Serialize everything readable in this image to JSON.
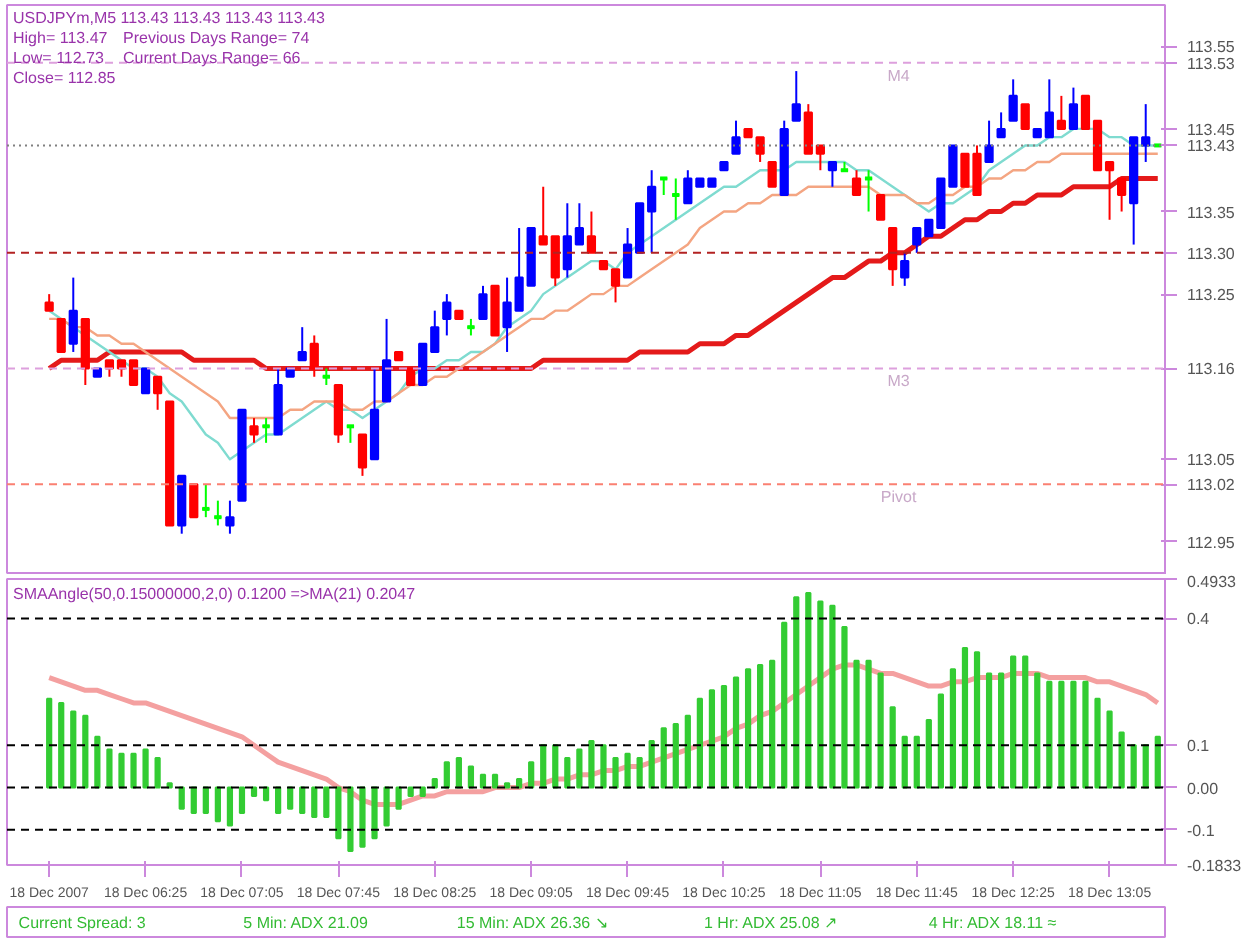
{
  "chart_data": [
    {
      "type": "candlestick",
      "tick_labels": "y",
      "grid": false,
      "categories": [
        null,
        null,
        null,
        null,
        null,
        null,
        null,
        null,
        null,
        null,
        null,
        null,
        null,
        null,
        null,
        null,
        null,
        null,
        null,
        null,
        null,
        null,
        null,
        null,
        null,
        null,
        null,
        null,
        null,
        null,
        null,
        null,
        null,
        null,
        null,
        null,
        null,
        null,
        null,
        null,
        null,
        null,
        null,
        null,
        null,
        null,
        null,
        null,
        null,
        null,
        null,
        null,
        null,
        null,
        null,
        null,
        null,
        null,
        null,
        null,
        null,
        null,
        null,
        null,
        null,
        null,
        null,
        null,
        null,
        null,
        null,
        null,
        null,
        null,
        null,
        null,
        null,
        null,
        null,
        null,
        null,
        null,
        null,
        null,
        null,
        null,
        null,
        null,
        null,
        null,
        null,
        null,
        null
      ],
      "ylim": [
        112.91,
        113.6
      ],
      "yticks": [
        113.55,
        {
          "value": 113.53,
          "label": "113.53"
        },
        113.45,
        {
          "value": 113.43,
          "label": "113.43"
        },
        113.35,
        {
          "value": 113.3,
          "label": "113.30"
        },
        113.25,
        {
          "value": 113.16,
          "label": "113.16"
        },
        113.05,
        {
          "value": 113.02,
          "label": "113.02"
        },
        112.95
      ],
      "ohlc": [
        [
          113.24,
          113.25,
          113.23,
          113.23
        ],
        [
          113.22,
          113.22,
          113.18,
          113.18
        ],
        [
          113.19,
          113.27,
          113.18,
          113.23
        ],
        [
          113.22,
          113.22,
          113.14,
          113.16
        ],
        [
          113.15,
          113.16,
          113.15,
          113.16
        ],
        [
          113.17,
          113.17,
          113.15,
          113.16
        ],
        [
          113.17,
          113.17,
          113.15,
          113.16
        ],
        [
          113.17,
          113.17,
          113.14,
          113.14
        ],
        [
          113.13,
          113.16,
          113.13,
          113.16
        ],
        [
          113.15,
          113.15,
          113.11,
          113.13
        ],
        [
          113.12,
          113.12,
          112.97,
          112.97
        ],
        [
          112.97,
          113.03,
          112.96,
          113.03
        ],
        [
          113.02,
          113.02,
          112.98,
          112.98
        ],
        [
          112.99,
          113.02,
          112.98,
          112.99
        ],
        [
          112.98,
          113.0,
          112.97,
          112.98
        ],
        [
          112.97,
          113.0,
          112.96,
          112.98
        ],
        [
          113.0,
          113.11,
          113.0,
          113.11
        ],
        [
          113.09,
          113.1,
          113.07,
          113.08
        ],
        [
          113.09,
          113.1,
          113.07,
          113.09
        ],
        [
          113.08,
          113.16,
          113.08,
          113.14
        ],
        [
          113.15,
          113.16,
          113.15,
          113.16
        ],
        [
          113.17,
          113.21,
          113.17,
          113.18
        ],
        [
          113.19,
          113.2,
          113.15,
          113.16
        ],
        [
          113.15,
          113.16,
          113.14,
          113.15
        ],
        [
          113.14,
          113.14,
          113.07,
          113.08
        ],
        [
          113.09,
          113.09,
          113.07,
          113.09
        ],
        [
          113.08,
          113.08,
          113.03,
          113.04
        ],
        [
          113.05,
          113.16,
          113.05,
          113.11
        ],
        [
          113.12,
          113.22,
          113.12,
          113.17
        ],
        [
          113.18,
          113.18,
          113.17,
          113.17
        ],
        [
          113.16,
          113.16,
          113.14,
          113.14
        ],
        [
          113.14,
          113.19,
          113.14,
          113.19
        ],
        [
          113.18,
          113.23,
          113.18,
          113.21
        ],
        [
          113.22,
          113.25,
          113.2,
          113.24
        ],
        [
          113.23,
          113.23,
          113.22,
          113.22
        ],
        [
          113.21,
          113.22,
          113.2,
          113.21
        ],
        [
          113.22,
          113.26,
          113.22,
          113.25
        ],
        [
          113.26,
          113.26,
          113.2,
          113.2
        ],
        [
          113.21,
          113.27,
          113.18,
          113.24
        ],
        [
          113.23,
          113.33,
          113.23,
          113.27
        ],
        [
          113.26,
          113.33,
          113.26,
          113.33
        ],
        [
          113.32,
          113.38,
          113.31,
          113.31
        ],
        [
          113.32,
          113.32,
          113.26,
          113.27
        ],
        [
          113.28,
          113.36,
          113.27,
          113.32
        ],
        [
          113.31,
          113.36,
          113.31,
          113.33
        ],
        [
          113.32,
          113.35,
          113.3,
          113.3
        ],
        [
          113.29,
          113.29,
          113.28,
          113.28
        ],
        [
          113.28,
          113.28,
          113.24,
          113.26
        ],
        [
          113.27,
          113.33,
          113.27,
          113.31
        ],
        [
          113.3,
          113.36,
          113.3,
          113.36
        ],
        [
          113.35,
          113.4,
          113.3,
          113.38
        ],
        [
          113.39,
          113.39,
          113.37,
          113.39
        ],
        [
          113.37,
          113.39,
          113.34,
          113.37
        ],
        [
          113.36,
          113.4,
          113.36,
          113.39
        ],
        [
          113.38,
          113.39,
          113.38,
          113.39
        ],
        [
          113.38,
          113.39,
          113.38,
          113.39
        ],
        [
          113.4,
          113.41,
          113.4,
          113.41
        ],
        [
          113.42,
          113.46,
          113.42,
          113.44
        ],
        [
          113.45,
          113.45,
          113.44,
          113.44
        ],
        [
          113.44,
          113.44,
          113.41,
          113.42
        ],
        [
          113.41,
          113.41,
          113.38,
          113.38
        ],
        [
          113.37,
          113.46,
          113.37,
          113.45
        ],
        [
          113.46,
          113.52,
          113.46,
          113.48
        ],
        [
          113.47,
          113.48,
          113.42,
          113.42
        ],
        [
          113.43,
          113.43,
          113.4,
          113.42
        ],
        [
          113.4,
          113.41,
          113.38,
          113.41
        ],
        [
          113.4,
          113.41,
          113.4,
          113.4
        ],
        [
          113.39,
          113.4,
          113.37,
          113.37
        ],
        [
          113.39,
          113.4,
          113.35,
          113.39
        ],
        [
          113.37,
          113.37,
          113.34,
          113.34
        ],
        [
          113.33,
          113.33,
          113.26,
          113.28
        ],
        [
          113.27,
          113.3,
          113.26,
          113.29
        ],
        [
          113.31,
          113.33,
          113.3,
          113.33
        ],
        [
          113.32,
          113.34,
          113.32,
          113.34
        ],
        [
          113.33,
          113.39,
          113.33,
          113.39
        ],
        [
          113.38,
          113.43,
          113.38,
          113.43
        ],
        [
          113.42,
          113.42,
          113.38,
          113.38
        ],
        [
          113.42,
          113.43,
          113.37,
          113.37
        ],
        [
          113.41,
          113.46,
          113.41,
          113.43
        ],
        [
          113.44,
          113.47,
          113.44,
          113.45
        ],
        [
          113.46,
          113.51,
          113.46,
          113.49
        ],
        [
          113.48,
          113.48,
          113.45,
          113.45
        ],
        [
          113.44,
          113.45,
          113.44,
          113.45
        ],
        [
          113.44,
          113.51,
          113.44,
          113.47
        ],
        [
          113.46,
          113.49,
          113.45,
          113.45
        ],
        [
          113.45,
          113.5,
          113.45,
          113.48
        ],
        [
          113.49,
          113.49,
          113.45,
          113.45
        ],
        [
          113.46,
          113.46,
          113.4,
          113.4
        ],
        [
          113.41,
          113.41,
          113.34,
          113.4
        ],
        [
          113.39,
          113.39,
          113.35,
          113.37
        ],
        [
          113.36,
          113.44,
          113.31,
          113.44
        ],
        [
          113.43,
          113.48,
          113.41,
          113.44
        ],
        [
          113.43,
          113.43,
          113.43,
          113.43
        ]
      ],
      "colors": [
        "#ff0000",
        "#ff0000",
        "#0000ff",
        "#ff0000",
        "#0000ff",
        "#ff0000",
        "#ff0000",
        "#ff0000",
        "#0000ff",
        "#ff0000",
        "#ff0000",
        "#0000ff",
        "#ff0000",
        "#00ff00",
        "#00ff00",
        "#0000ff",
        "#0000ff",
        "#ff0000",
        "#00ff00",
        "#0000ff",
        "#0000ff",
        "#0000ff",
        "#ff0000",
        "#00ff00",
        "#ff0000",
        "#00ff00",
        "#ff0000",
        "#0000ff",
        "#0000ff",
        "#ff0000",
        "#ff0000",
        "#0000ff",
        "#0000ff",
        "#0000ff",
        "#ff0000",
        "#00ff00",
        "#0000ff",
        "#ff0000",
        "#0000ff",
        "#0000ff",
        "#0000ff",
        "#ff0000",
        "#ff0000",
        "#0000ff",
        "#0000ff",
        "#ff0000",
        "#ff0000",
        "#ff0000",
        "#0000ff",
        "#0000ff",
        "#0000ff",
        "#00ff00",
        "#00ff00",
        "#0000ff",
        "#0000ff",
        "#0000ff",
        "#0000ff",
        "#0000ff",
        "#ff0000",
        "#ff0000",
        "#ff0000",
        "#0000ff",
        "#0000ff",
        "#ff0000",
        "#ff0000",
        "#0000ff",
        "#00ff00",
        "#ff0000",
        "#00ff00",
        "#ff0000",
        "#ff0000",
        "#0000ff",
        "#0000ff",
        "#0000ff",
        "#0000ff",
        "#0000ff",
        "#ff0000",
        "#ff0000",
        "#0000ff",
        "#0000ff",
        "#0000ff",
        "#ff0000",
        "#0000ff",
        "#0000ff",
        "#ff0000",
        "#0000ff",
        "#ff0000",
        "#ff0000",
        "#ff0000",
        "#ff0000",
        "#0000ff",
        "#0000ff",
        "#00ff00"
      ],
      "series": [
        {
          "type": "line",
          "color": "#e41a1a",
          "values": [
            113.16,
            113.17,
            113.17,
            113.17,
            113.17,
            113.18,
            113.18,
            113.18,
            113.18,
            113.18,
            113.18,
            113.18,
            113.17,
            113.17,
            113.17,
            113.17,
            113.17,
            113.17,
            113.16,
            113.16,
            113.16,
            113.16,
            113.16,
            113.16,
            113.16,
            113.16,
            113.16,
            113.16,
            113.16,
            113.16,
            113.16,
            113.16,
            113.16,
            113.16,
            113.16,
            113.16,
            113.16,
            113.16,
            113.16,
            113.16,
            113.16,
            113.17,
            113.17,
            113.17,
            113.17,
            113.17,
            113.17,
            113.17,
            113.17,
            113.18,
            113.18,
            113.18,
            113.18,
            113.18,
            113.19,
            113.19,
            113.19,
            113.2,
            113.2,
            113.21,
            113.22,
            113.23,
            113.24,
            113.25,
            113.26,
            113.27,
            113.27,
            113.28,
            113.29,
            113.29,
            113.3,
            113.3,
            113.31,
            113.32,
            113.32,
            113.33,
            113.34,
            113.34,
            113.35,
            113.35,
            113.36,
            113.36,
            113.37,
            113.37,
            113.37,
            113.38,
            113.38,
            113.38,
            113.38,
            113.39,
            113.39,
            113.39,
            113.39
          ]
        },
        {
          "type": "line",
          "color": "#7fdbd0",
          "values": [
            113.23,
            113.22,
            113.21,
            113.2,
            113.19,
            113.18,
            113.17,
            113.16,
            113.16,
            113.15,
            113.13,
            113.12,
            113.1,
            113.08,
            113.07,
            113.05,
            113.06,
            113.07,
            113.08,
            113.08,
            113.09,
            113.1,
            113.11,
            113.12,
            113.11,
            113.11,
            113.1,
            113.11,
            113.12,
            113.13,
            113.15,
            113.16,
            113.16,
            113.17,
            113.17,
            113.18,
            113.18,
            113.19,
            113.21,
            113.22,
            113.23,
            113.25,
            113.26,
            113.27,
            113.28,
            113.29,
            113.29,
            113.28,
            113.3,
            113.31,
            113.32,
            113.33,
            113.34,
            113.35,
            113.36,
            113.37,
            113.38,
            113.38,
            113.39,
            113.4,
            113.4,
            113.4,
            113.41,
            113.41,
            113.41,
            113.41,
            113.41,
            113.4,
            113.4,
            113.39,
            113.38,
            113.37,
            113.36,
            113.35,
            113.36,
            113.36,
            113.37,
            113.38,
            113.4,
            113.41,
            113.42,
            113.43,
            113.43,
            113.44,
            113.44,
            113.45,
            113.45,
            113.45,
            113.44,
            113.44,
            113.43,
            113.43,
            113.43
          ]
        },
        {
          "type": "line",
          "color": "#f4a582",
          "values": [
            113.22,
            113.22,
            113.21,
            113.21,
            113.2,
            113.2,
            113.19,
            113.19,
            113.18,
            113.17,
            113.16,
            113.15,
            113.14,
            113.13,
            113.12,
            113.1,
            113.1,
            113.1,
            113.1,
            113.1,
            113.11,
            113.11,
            113.12,
            113.12,
            113.12,
            113.11,
            113.11,
            113.12,
            113.12,
            113.13,
            113.14,
            113.14,
            113.15,
            113.15,
            113.16,
            113.17,
            113.18,
            113.19,
            113.2,
            113.21,
            113.22,
            113.22,
            113.23,
            113.23,
            113.24,
            113.25,
            113.25,
            113.26,
            113.26,
            113.27,
            113.28,
            113.29,
            113.3,
            113.31,
            113.33,
            113.34,
            113.35,
            113.35,
            113.36,
            113.36,
            113.37,
            113.37,
            113.37,
            113.38,
            113.38,
            113.38,
            113.38,
            113.38,
            113.38,
            113.37,
            113.37,
            113.37,
            113.36,
            113.36,
            113.37,
            113.37,
            113.38,
            113.38,
            113.39,
            113.39,
            113.4,
            113.4,
            113.41,
            113.41,
            113.42,
            113.42,
            113.42,
            113.42,
            113.42,
            113.42,
            113.42,
            113.42,
            113.42
          ]
        }
      ],
      "ref_lines": [
        {
          "axis": "y",
          "value": 113.53,
          "label": "M4",
          "color": "#dda0dd",
          "line_style": "dashed"
        },
        {
          "axis": "y",
          "value": 113.43,
          "label": null,
          "color": "#808080",
          "line_style": "dotted"
        },
        {
          "axis": "y",
          "value": 113.3,
          "label": null,
          "color": "#b22222",
          "line_style": "dashed"
        },
        {
          "axis": "y",
          "value": 113.16,
          "label": "M3",
          "color": "#dda0dd",
          "line_style": "dashed"
        },
        {
          "axis": "y",
          "value": 113.02,
          "label": "Pivot",
          "color": "#fa8072",
          "line_style": "dashed"
        }
      ],
      "annotations": [
        "USDJPYm,M5  113.43 113.43 113.43 113.43",
        "High= 113.47",
        "Previous Days Range= 74",
        "Low= 112.73",
        "Current Days Range= 66",
        "Close= 112.85"
      ]
    },
    {
      "type": "bar",
      "color": "#33cc33",
      "grid": false,
      "title": "SMAAngle(50,0.15000000,2,0) 0.1200  =>MA(21) 0.2047",
      "categories": [
        "18 Dec 2007",
        null,
        null,
        null,
        null,
        null,
        null,
        null,
        "18 Dec 06:25",
        null,
        null,
        null,
        null,
        null,
        null,
        null,
        "18 Dec 07:05",
        null,
        null,
        null,
        null,
        null,
        null,
        null,
        "18 Dec 07:45",
        null,
        null,
        null,
        null,
        null,
        null,
        null,
        "18 Dec 08:25",
        null,
        null,
        null,
        null,
        null,
        null,
        null,
        "18 Dec 09:05",
        null,
        null,
        null,
        null,
        null,
        null,
        null,
        "18 Dec 09:45",
        null,
        null,
        null,
        null,
        null,
        null,
        null,
        "18 Dec 10:25",
        null,
        null,
        null,
        null,
        null,
        null,
        null,
        "18 Dec 11:05",
        null,
        null,
        null,
        null,
        null,
        null,
        null,
        "18 Dec 11:45",
        null,
        null,
        null,
        null,
        null,
        null,
        null,
        "18 Dec 12:25",
        null,
        null,
        null,
        null,
        null,
        null,
        null,
        "18 Dec 13:05",
        null,
        null,
        null,
        null
      ],
      "values": [
        0.21,
        0.2,
        0.18,
        0.17,
        0.12,
        0.09,
        0.08,
        0.08,
        0.09,
        0.07,
        0.01,
        -0.05,
        -0.06,
        -0.06,
        -0.08,
        -0.09,
        -0.06,
        -0.02,
        -0.03,
        -0.06,
        -0.05,
        -0.06,
        -0.07,
        -0.07,
        -0.12,
        -0.15,
        -0.14,
        -0.12,
        -0.09,
        -0.05,
        -0.02,
        -0.02,
        0.02,
        0.06,
        0.07,
        0.05,
        0.03,
        0.03,
        0.01,
        0.02,
        0.06,
        0.1,
        0.1,
        0.07,
        0.09,
        0.11,
        0.1,
        0.07,
        0.08,
        0.07,
        0.11,
        0.14,
        0.15,
        0.17,
        0.21,
        0.23,
        0.24,
        0.26,
        0.28,
        0.29,
        0.3,
        0.39,
        0.45,
        0.46,
        0.44,
        0.43,
        0.38,
        0.3,
        0.3,
        0.27,
        0.19,
        0.12,
        0.12,
        0.16,
        0.22,
        0.28,
        0.33,
        0.32,
        0.27,
        0.27,
        0.31,
        0.31,
        0.27,
        0.25,
        0.25,
        0.25,
        0.25,
        0.21,
        0.18,
        0.13,
        0.1,
        0.1,
        0.12
      ],
      "ylim": [
        -0.1833,
        0.4933
      ],
      "yticks": [
        0.4933,
        0.4,
        0.1,
        {
          "value": 0,
          "label": "0.00"
        },
        -0.1,
        -0.1833
      ],
      "series": [
        {
          "type": "line",
          "color": "#f4a0a0",
          "values": [
            0.26,
            0.25,
            0.24,
            0.23,
            0.23,
            0.22,
            0.21,
            0.2,
            0.2,
            0.19,
            0.18,
            0.17,
            0.16,
            0.15,
            0.14,
            0.13,
            0.12,
            0.1,
            0.08,
            0.06,
            0.05,
            0.04,
            0.03,
            0.02,
            0.0,
            -0.01,
            -0.03,
            -0.04,
            -0.04,
            -0.04,
            -0.03,
            -0.02,
            -0.02,
            -0.01,
            -0.01,
            -0.01,
            -0.01,
            0.0,
            0.0,
            0.0,
            0.01,
            0.01,
            0.02,
            0.02,
            0.03,
            0.03,
            0.04,
            0.04,
            0.05,
            0.05,
            0.06,
            0.07,
            0.08,
            0.09,
            0.1,
            0.11,
            0.12,
            0.14,
            0.15,
            0.17,
            0.18,
            0.2,
            0.22,
            0.24,
            0.26,
            0.28,
            0.29,
            0.29,
            0.28,
            0.27,
            0.27,
            0.26,
            0.25,
            0.24,
            0.24,
            0.25,
            0.25,
            0.26,
            0.26,
            0.26,
            0.27,
            0.27,
            0.27,
            0.26,
            0.26,
            0.26,
            0.26,
            0.25,
            0.25,
            0.24,
            0.23,
            0.22,
            0.2
          ]
        }
      ],
      "ref_lines": [
        {
          "axis": "y",
          "value": 0.4,
          "label": null,
          "color": "#000000",
          "line_style": "dashed"
        },
        {
          "axis": "y",
          "value": 0.1,
          "label": null,
          "color": "#000000",
          "line_style": "dashed"
        },
        {
          "axis": "y",
          "value": 0,
          "label": null,
          "color": "#000000",
          "line_style": "dashed"
        },
        {
          "axis": "y",
          "value": -0.1,
          "label": null,
          "color": "#000000",
          "line_style": "dashed"
        }
      ],
      "annotations": [
        "Current Spread: 3",
        "5 Min: ADX 21.09",
        "15 Min: ADX 26.36 ↘",
        "1 Hr: ADX 25.08 ↗",
        "4 Hr: ADX 18.11 ≈"
      ]
    }
  ]
}
